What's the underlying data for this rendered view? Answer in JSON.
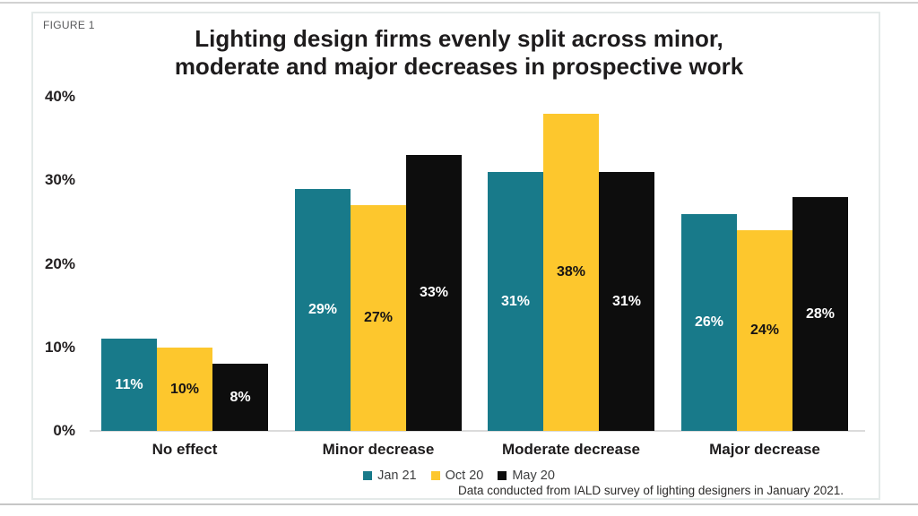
{
  "figure": {
    "label": "FIGURE 1",
    "title_line1": "Lighting design firms evenly split across minor,",
    "title_line2": "moderate and major decreases in prospective work",
    "footnote": "Data conducted from IALD survey of lighting designers in January 2021."
  },
  "colors": {
    "teal": "#187a8a",
    "yellow": "#fdc72d",
    "black": "#0d0d0d",
    "baseline_gray": "#dbdbdb",
    "panel_border": "#e4eae9"
  },
  "chart_data": {
    "type": "bar",
    "title": "Lighting design firms evenly split across minor, moderate and major decreases in prospective work",
    "categories": [
      "No effect",
      "Minor decrease",
      "Moderate decrease",
      "Major decrease"
    ],
    "series": [
      {
        "name": "Jan 21",
        "color": "#187a8a",
        "label_color": "#ffffff",
        "values": [
          11,
          29,
          31,
          26
        ]
      },
      {
        "name": "Oct 20",
        "color": "#fdc72d",
        "label_color": "#161314",
        "values": [
          10,
          27,
          38,
          24
        ]
      },
      {
        "name": "May 20",
        "color": "#0d0d0d",
        "label_color": "#ffffff",
        "values": [
          8,
          33,
          31,
          28
        ]
      }
    ],
    "y_ticks": [
      {
        "value": 0,
        "label": "0%"
      },
      {
        "value": 10,
        "label": "10%"
      },
      {
        "value": 20,
        "label": "20%"
      },
      {
        "value": 30,
        "label": "30%"
      },
      {
        "value": 40,
        "label": "40%"
      }
    ],
    "ylim": [
      0,
      40
    ],
    "value_suffix": "%",
    "grid": false,
    "legend_position": "bottom-center",
    "xlabel": "",
    "ylabel": ""
  }
}
